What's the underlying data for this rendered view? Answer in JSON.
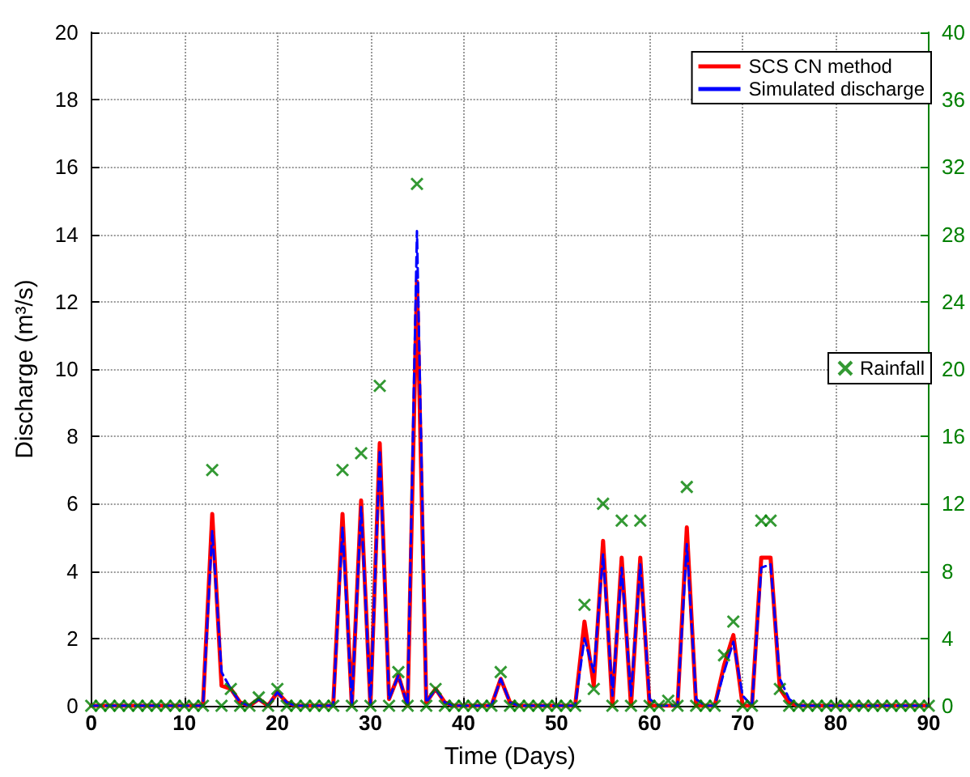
{
  "chart_data": {
    "type": "line",
    "xlabel": "Time (Days)",
    "ylabel": "Discharge (m³/s)",
    "x": [
      0,
      1,
      2,
      3,
      4,
      5,
      6,
      7,
      8,
      9,
      10,
      11,
      12,
      13,
      14,
      15,
      16,
      17,
      18,
      19,
      20,
      21,
      22,
      23,
      24,
      25,
      26,
      27,
      28,
      29,
      30,
      31,
      32,
      33,
      34,
      35,
      36,
      37,
      38,
      39,
      40,
      41,
      42,
      43,
      44,
      45,
      46,
      47,
      48,
      49,
      50,
      51,
      52,
      53,
      54,
      55,
      56,
      57,
      58,
      59,
      60,
      61,
      62,
      63,
      64,
      65,
      66,
      67,
      68,
      69,
      70,
      71,
      72,
      73,
      74,
      75,
      76,
      77,
      78,
      79,
      80,
      81,
      82,
      83,
      84,
      85,
      86,
      87,
      88,
      89,
      90
    ],
    "series": [
      {
        "name": "SCS CN method",
        "color": "#ff0000",
        "line_style": "solid",
        "marker": "none",
        "values": [
          0,
          0,
          0,
          0,
          0,
          0,
          0,
          0,
          0,
          0,
          0,
          0,
          0,
          5.7,
          0.6,
          0.5,
          0.1,
          0,
          0.2,
          0,
          0.4,
          0.1,
          0,
          0,
          0,
          0,
          0,
          5.7,
          0,
          6.1,
          0,
          7.8,
          0.2,
          0.9,
          0,
          12.6,
          0.1,
          0.5,
          0.1,
          0,
          0,
          0,
          0,
          0,
          0.8,
          0.1,
          0,
          0,
          0,
          0,
          0,
          0,
          0,
          2.5,
          0.6,
          4.9,
          0,
          4.4,
          0,
          4.4,
          0,
          0,
          0,
          0,
          5.3,
          0,
          0,
          0,
          1.2,
          2.1,
          0,
          0,
          4.4,
          4.4,
          0.5,
          0.1,
          0,
          0,
          0,
          0,
          0,
          0,
          0,
          0,
          0,
          0,
          0,
          0,
          0,
          0,
          0
        ]
      },
      {
        "name": "Simulated discharge",
        "color": "#0000ff",
        "line_style": "dashed",
        "marker": "none",
        "values": [
          0,
          0,
          0,
          0,
          0,
          0,
          0,
          0,
          0,
          0,
          0,
          0,
          0,
          5.2,
          1.0,
          0.5,
          0.1,
          0,
          0.2,
          0,
          0.4,
          0.1,
          0,
          0,
          0,
          0,
          0,
          5.3,
          0,
          5.9,
          0,
          7.6,
          0.2,
          0.9,
          0,
          14.1,
          0.1,
          0.5,
          0.1,
          0,
          0,
          0,
          0,
          0,
          0.8,
          0.1,
          0,
          0,
          0,
          0,
          0,
          0,
          0,
          2.0,
          1.0,
          4.5,
          0.3,
          4.1,
          0.3,
          4.2,
          0.2,
          0,
          0,
          0,
          4.8,
          0.2,
          0,
          0,
          1.0,
          1.9,
          0.3,
          0,
          4.1,
          4.2,
          0.8,
          0.2,
          0,
          0,
          0,
          0,
          0,
          0,
          0,
          0,
          0,
          0,
          0,
          0,
          0,
          0,
          0
        ]
      },
      {
        "name": "Rainfall",
        "type": "scatter",
        "axis": "y2",
        "color": "#008000",
        "marker": "cross",
        "values": [
          0,
          0,
          0,
          0,
          0,
          0,
          0,
          0,
          0,
          0,
          0,
          0,
          0,
          14,
          0,
          1,
          0,
          0,
          0.5,
          0,
          1,
          0,
          0,
          0,
          0,
          0,
          0,
          14,
          0,
          15,
          0,
          19,
          0,
          2,
          0,
          31,
          0,
          1,
          0,
          0,
          0,
          0,
          0,
          0,
          2,
          0,
          0,
          0,
          0,
          0,
          0,
          0,
          0,
          6,
          1,
          12,
          0,
          11,
          0,
          11,
          0,
          0,
          0.3,
          0,
          13,
          0,
          0,
          0,
          3,
          5,
          0,
          0,
          11,
          11,
          1,
          0,
          0,
          0,
          0,
          0,
          0,
          0,
          0,
          0,
          0,
          0,
          0,
          0,
          0,
          0,
          0
        ]
      }
    ],
    "xlim": [
      0,
      90
    ],
    "xticks": [
      0,
      10,
      20,
      30,
      40,
      50,
      60,
      70,
      80,
      90
    ],
    "ylim": [
      0,
      20
    ],
    "yticks": [
      0,
      2,
      4,
      6,
      8,
      10,
      12,
      14,
      16,
      18,
      20
    ],
    "y2lim": [
      0,
      40
    ],
    "y2ticks": [
      0,
      4,
      8,
      12,
      16,
      20,
      24,
      28,
      32,
      36,
      40
    ],
    "grid": true,
    "legend": "top right"
  }
}
